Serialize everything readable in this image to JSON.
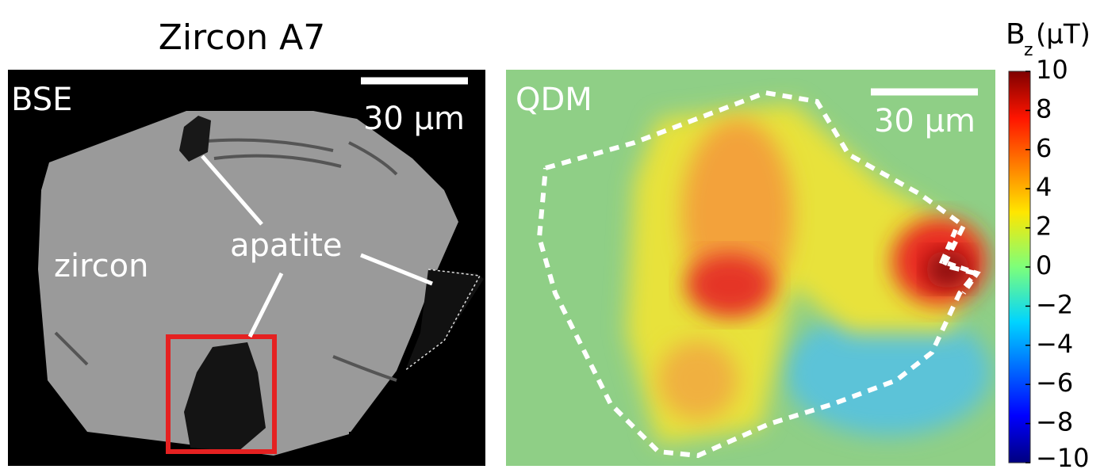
{
  "title": "Zircon A7",
  "bse_panel": {
    "label": "BSE",
    "scale_bar": "30 μm",
    "mineral_1": "zircon",
    "mineral_2": "apatite"
  },
  "qdm_panel": {
    "label": "QDM",
    "scale_bar": "30 μm"
  },
  "colorbar": {
    "symbol": "B",
    "subscript": "z",
    "unit": "(μT)",
    "lim": [
      -10,
      10
    ],
    "ticks": [
      10,
      8,
      6,
      4,
      2,
      0,
      {
        "value": -2,
        "label": "−2"
      },
      {
        "value": -4,
        "label": "−4"
      },
      {
        "value": -6,
        "label": "−6"
      },
      {
        "value": -8,
        "label": "−8"
      },
      {
        "value": -10,
        "label": "−10"
      }
    ]
  }
}
